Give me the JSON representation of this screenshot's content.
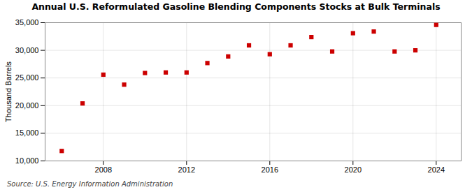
{
  "chart_data": {
    "type": "scatter",
    "title": "Annual U.S. Reformulated Gasoline Blending Components Stocks at Bulk Terminals",
    "ylabel": "Thousand Barrels",
    "source": "Source: U.S. Energy Information Administration",
    "x": [
      2006,
      2007,
      2008,
      2009,
      2010,
      2011,
      2012,
      2013,
      2014,
      2015,
      2016,
      2017,
      2018,
      2019,
      2020,
      2021,
      2022,
      2023,
      2024
    ],
    "values": [
      11800,
      20400,
      25600,
      23800,
      25900,
      26000,
      26000,
      27700,
      28900,
      30900,
      29300,
      30900,
      32400,
      29800,
      33100,
      33400,
      29800,
      30000,
      34600
    ],
    "color": "#cc0000",
    "marker": "square",
    "xlim": [
      2005.2,
      2025.2
    ],
    "xticks": [
      2008,
      2012,
      2016,
      2020,
      2024
    ],
    "ylim": [
      10000,
      35000
    ],
    "yticks": [
      {
        "value": 10000,
        "label": "10,000"
      },
      {
        "value": 15000,
        "label": "15,000"
      },
      {
        "value": 20000,
        "label": "20,000"
      },
      {
        "value": 25000,
        "label": "25,000"
      },
      {
        "value": 30000,
        "label": "30,000"
      },
      {
        "value": 35000,
        "label": "35,000"
      }
    ],
    "grid": true
  }
}
